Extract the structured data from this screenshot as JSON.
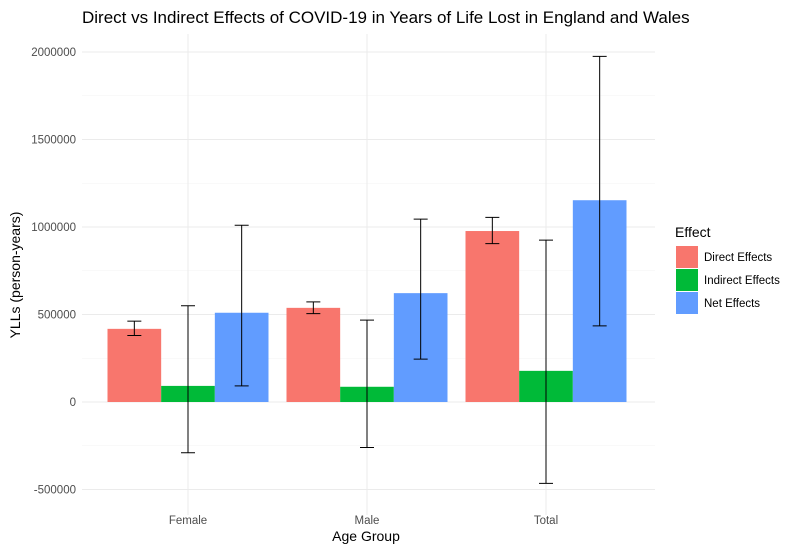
{
  "chart_data": {
    "type": "bar",
    "title": "Direct vs Indirect Effects of COVID-19 in Years of Life Lost in England and Wales",
    "xlabel": "Age Group",
    "ylabel": "YLLs (person-years)",
    "categories": [
      "Female",
      "Male",
      "Total"
    ],
    "ylim": [
      -560000,
      2080000
    ],
    "yticks": [
      -500000,
      0,
      500000,
      1000000,
      1500000,
      2000000
    ],
    "ytick_labels": [
      "-500000",
      "0",
      "500000",
      "1000000",
      "1500000",
      "2000000"
    ],
    "grid": true,
    "legend": {
      "title": "Effect",
      "position": "right"
    },
    "series": [
      {
        "name": "Direct Effects",
        "color": "#F8766D",
        "values": [
          418000,
          538000,
          977000
        ],
        "err_low": [
          380000,
          505000,
          905000
        ],
        "err_high": [
          462000,
          572000,
          1055000
        ]
      },
      {
        "name": "Indirect Effects",
        "color": "#00BA38",
        "values": [
          92000,
          87000,
          178000
        ],
        "err_low": [
          -290000,
          -260000,
          -465000
        ],
        "err_high": [
          550000,
          468000,
          925000
        ]
      },
      {
        "name": "Net Effects",
        "color": "#619CFF",
        "values": [
          510000,
          622000,
          1153000
        ],
        "err_low": [
          92000,
          245000,
          435000
        ],
        "err_high": [
          1010000,
          1045000,
          1975000
        ]
      }
    ]
  }
}
